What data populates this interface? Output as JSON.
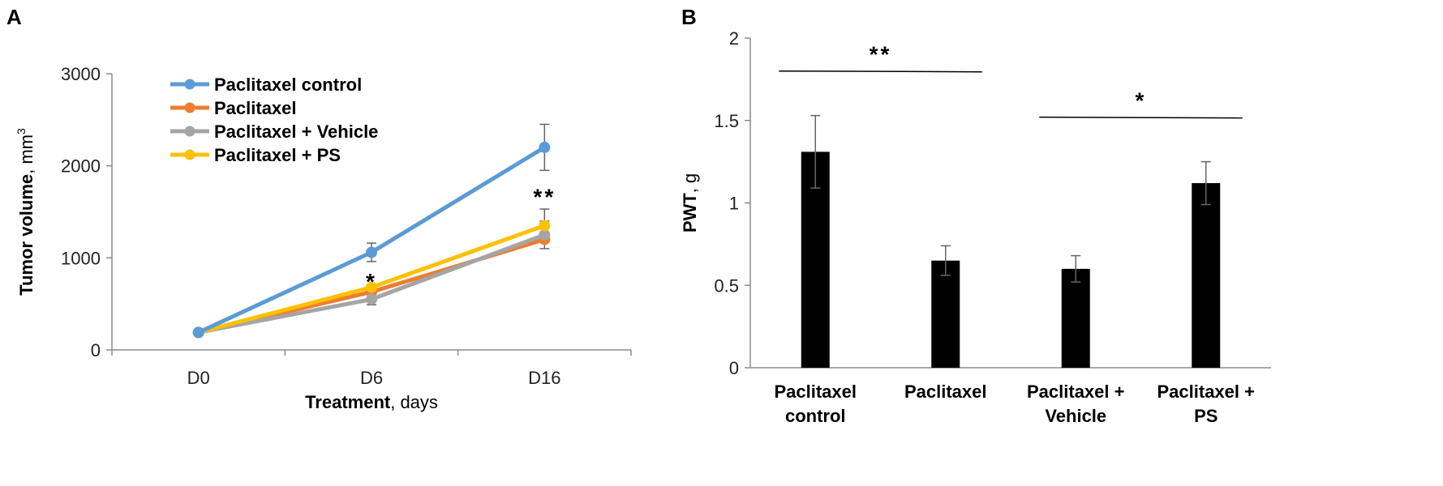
{
  "panel_labels": {
    "a": "A",
    "b": "B"
  },
  "chart_data": [
    {
      "type": "line",
      "categories": [
        "D0",
        "D6",
        "D16"
      ],
      "xlabel": {
        "bold": "Treatment",
        "normal": ", days"
      },
      "ylabel": {
        "bold": "Tumor volume",
        "normal": ", mm",
        "sup": "3"
      },
      "ylim": [
        0,
        3000
      ],
      "yticks": [
        0,
        1000,
        2000,
        3000
      ],
      "series": [
        {
          "name": "Paclitaxel control",
          "color": "#5B9BD5",
          "values": [
            190,
            1060,
            2200
          ],
          "errors": [
            0,
            100,
            250
          ]
        },
        {
          "name": "Paclitaxel",
          "color": "#ED7D31",
          "values": [
            190,
            630,
            1200
          ],
          "errors": [
            0,
            0,
            0
          ]
        },
        {
          "name": "Paclitaxel + Vehicle",
          "color": "#A5A5A5",
          "values": [
            190,
            550,
            1250
          ],
          "errors": [
            0,
            60,
            150
          ]
        },
        {
          "name": "Paclitaxel + PS",
          "color": "#FFC000",
          "values": [
            190,
            680,
            1350
          ],
          "errors": [
            0,
            0,
            180
          ]
        }
      ],
      "annotations": [
        {
          "text": "*",
          "category": "D6",
          "y": 800
        },
        {
          "text": "**",
          "category": "D16",
          "y": 1720
        }
      ]
    },
    {
      "type": "bar",
      "categories": [
        [
          "Paclitaxel",
          "control"
        ],
        [
          "Paclitaxel",
          ""
        ],
        [
          "Paclitaxel +",
          "Vehicle"
        ],
        [
          "Paclitaxel +",
          "PS"
        ]
      ],
      "values": [
        1.31,
        0.65,
        0.6,
        1.12
      ],
      "errors": [
        0.22,
        0.09,
        0.08,
        0.13
      ],
      "bar_color": "#000000",
      "ylabel": {
        "bold": "PWT",
        "normal": ", g"
      },
      "ylim": [
        0,
        2
      ],
      "yticks": [
        "0",
        "0.5",
        "1",
        "1.5",
        "2"
      ],
      "ytick_values": [
        0,
        0.5,
        1,
        1.5,
        2
      ],
      "annotations": [
        {
          "text": "**",
          "from": 0,
          "to": 1,
          "y": 1.8
        },
        {
          "text": "*",
          "from": 2,
          "to": 3,
          "y": 1.52
        }
      ]
    }
  ]
}
